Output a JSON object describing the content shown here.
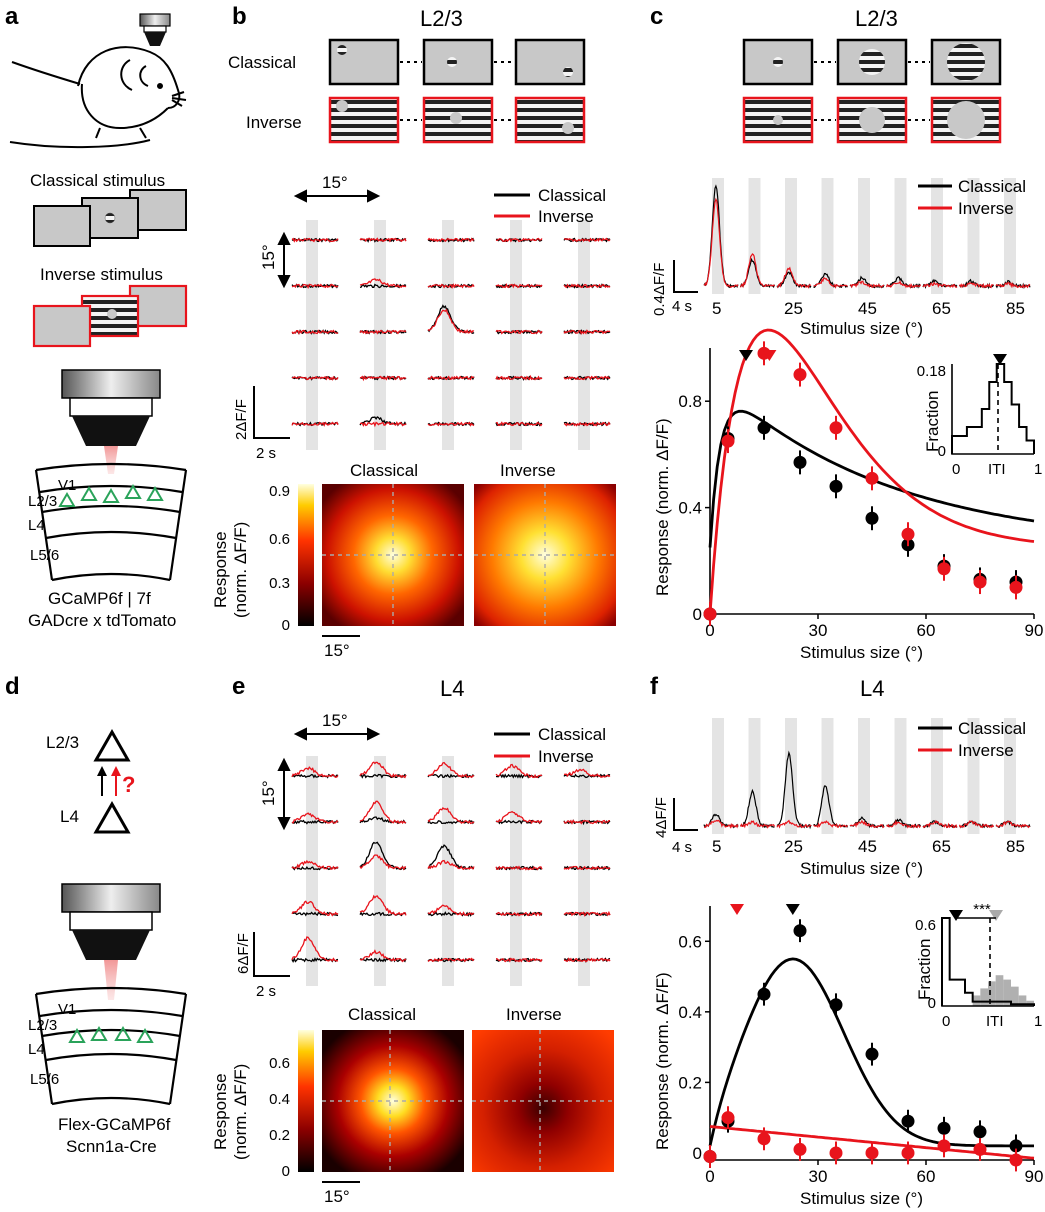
{
  "panels": {
    "a": {
      "letter": "a",
      "classical_stimulus": "Classical stimulus",
      "inverse_stimulus": "Inverse stimulus",
      "v1": "V1",
      "layers": [
        "L2/3",
        "L4",
        "L5/6"
      ],
      "line1": "GCaMP6f | 7f",
      "line2": "GADcre x tdTomato"
    },
    "b": {
      "letter": "b",
      "title": "L2/3",
      "row_classical": "Classical",
      "row_inverse": "Inverse",
      "scale_h": "15°",
      "scale_v": "15°",
      "scale_y": "2ΔF/F",
      "scale_t": "2 s",
      "map_left": "Classical",
      "map_right": "Inverse",
      "cbar_label_1": "Response",
      "cbar_label_2": "(norm. ΔF/F)",
      "cbar_ticks": [
        "0",
        "0.3",
        "0.6",
        "0.9"
      ],
      "map_scale": "15°"
    },
    "c": {
      "letter": "c",
      "title": "L2/3",
      "trace_ylabel": "0.4ΔF/F",
      "trace_time": "4 s",
      "trace_ticks": [
        "5",
        "25",
        "45",
        "65",
        "85"
      ],
      "trace_xlabel": "Stimulus size (°)",
      "inset_ylabel": "Fraction",
      "inset_yticks": [
        "0",
        "0.18"
      ],
      "inset_xticks": [
        "0",
        "ITI",
        "1"
      ]
    },
    "d": {
      "letter": "d",
      "top_label": "L2/3",
      "bottom_label": "L4",
      "question": "?",
      "v1": "V1",
      "layers": [
        "L2/3",
        "L4",
        "L5/6"
      ],
      "line1": "Flex-GCaMP6f",
      "line2": "Scnn1a-Cre"
    },
    "e": {
      "letter": "e",
      "title": "L4",
      "scale_h": "15°",
      "scale_v": "15°",
      "scale_y": "6ΔF/F",
      "scale_t": "2 s",
      "map_left": "Classical",
      "map_right": "Inverse",
      "cbar_label_1": "Response",
      "cbar_label_2": "(norm. ΔF/F)",
      "cbar_ticks": [
        "0",
        "0.2",
        "0.4",
        "0.6"
      ],
      "map_scale": "15°"
    },
    "f": {
      "letter": "f",
      "title": "L4",
      "trace_ylabel": "4ΔF/F",
      "trace_time": "4 s",
      "trace_ticks": [
        "5",
        "25",
        "45",
        "65",
        "85"
      ],
      "trace_xlabel": "Stimulus size (°)",
      "inset_ylabel": "Fraction",
      "inset_yticks": [
        "0",
        "0.6"
      ],
      "inset_xticks": [
        "0",
        "ITI",
        "1"
      ],
      "significance": "***"
    }
  },
  "legend": {
    "classical": "Classical",
    "inverse": "Inverse"
  },
  "colors": {
    "classical": "#000000",
    "inverse": "#e8141c",
    "stimulus_gray": "#c8c8c8",
    "shade": "#e4e4e4",
    "green": "#2aa35a"
  },
  "chart_data": [
    {
      "panel": "c",
      "type": "scatter",
      "xlabel": "Stimulus size (°)",
      "ylabel": "Response (norm. ΔF/F)",
      "xlim": [
        0,
        90
      ],
      "ylim": [
        0,
        1.0
      ],
      "xticks": [
        0,
        30,
        60,
        90
      ],
      "yticks": [
        0,
        0.4,
        0.8
      ],
      "x": [
        0,
        5,
        15,
        25,
        35,
        45,
        55,
        65,
        75,
        85
      ],
      "series": [
        {
          "name": "Classical",
          "values": [
            0.0,
            0.66,
            0.7,
            0.57,
            0.48,
            0.36,
            0.26,
            0.18,
            0.13,
            0.12
          ]
        },
        {
          "name": "Inverse",
          "values": [
            0.0,
            0.65,
            0.98,
            0.9,
            0.7,
            0.51,
            0.3,
            0.17,
            0.12,
            0.1
          ]
        }
      ]
    },
    {
      "panel": "f",
      "type": "scatter",
      "xlabel": "Stimulus size (°)",
      "ylabel": "Response (norm. ΔF/F)",
      "xlim": [
        0,
        90
      ],
      "ylim": [
        -0.02,
        0.7
      ],
      "xticks": [
        0,
        30,
        60,
        90
      ],
      "yticks": [
        0,
        0.2,
        0.4,
        0.6
      ],
      "x": [
        0,
        5,
        15,
        25,
        35,
        45,
        55,
        65,
        75,
        85
      ],
      "series": [
        {
          "name": "Classical",
          "values": [
            -0.01,
            0.09,
            0.45,
            0.63,
            0.42,
            0.28,
            0.09,
            0.07,
            0.06,
            0.02
          ]
        },
        {
          "name": "Inverse",
          "values": [
            -0.01,
            0.1,
            0.04,
            0.01,
            0.0,
            0.0,
            0.0,
            0.02,
            0.01,
            -0.02
          ]
        }
      ]
    }
  ]
}
